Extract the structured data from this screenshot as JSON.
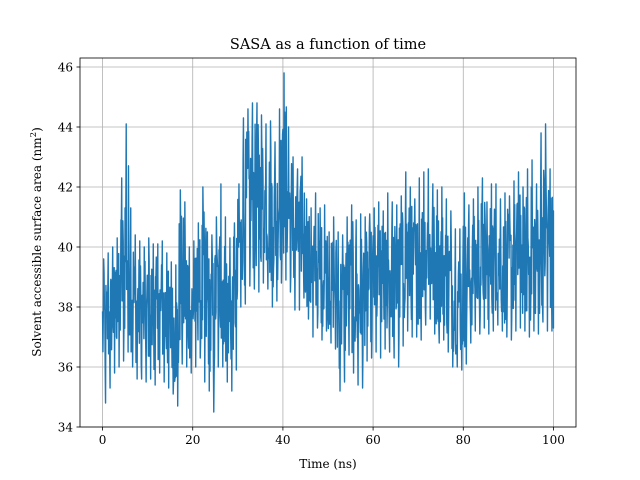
{
  "chart_data": {
    "type": "line",
    "title": "SASA as a function of time",
    "xlabel": "Time (ns)",
    "ylabel_main": "Solvent accessible surface area (nm",
    "ylabel_sup": "2",
    "ylabel_close": ")",
    "xlim": [
      -5,
      105
    ],
    "ylim": [
      34,
      46.3
    ],
    "xticks": [
      0,
      20,
      40,
      60,
      80,
      100
    ],
    "yticks": [
      34,
      36,
      38,
      40,
      42,
      44,
      46
    ],
    "grid": true,
    "line_color": "#1f77b4",
    "series": [
      {
        "x": [
          0,
          1,
          2,
          3,
          4,
          5,
          6,
          7,
          8,
          9,
          10,
          11,
          12,
          13,
          14,
          15,
          16,
          17,
          18,
          19,
          20,
          21,
          22,
          23,
          24,
          25,
          26,
          27,
          28,
          29,
          30,
          31,
          32,
          33,
          34,
          35,
          36,
          37,
          38,
          39,
          40,
          41,
          42,
          43,
          44,
          45,
          46,
          47,
          48,
          49,
          50,
          51,
          52,
          53,
          54,
          55,
          56,
          57,
          58,
          59,
          60,
          61,
          62,
          63,
          64,
          65,
          66,
          67,
          68,
          69,
          70,
          71,
          72,
          73,
          74,
          75,
          76,
          77,
          78,
          79,
          80,
          81,
          82,
          83,
          84,
          85,
          86,
          87,
          88,
          89,
          90,
          91,
          92,
          93,
          94,
          95,
          96,
          97,
          98,
          99,
          100
        ],
        "mean": [
          37.5,
          37.4,
          37.8,
          38.0,
          38.3,
          39.5,
          38.6,
          38.0,
          37.9,
          37.6,
          37.8,
          37.7,
          38.0,
          37.8,
          37.5,
          37.2,
          37.0,
          38.0,
          37.8,
          37.6,
          38.2,
          38.6,
          38.3,
          37.8,
          38.0,
          38.6,
          39.0,
          38.2,
          37.8,
          38.5,
          40.0,
          41.0,
          41.3,
          41.2,
          41.5,
          41.8,
          42.0,
          41.2,
          41.0,
          41.5,
          41.8,
          41.0,
          40.5,
          40.3,
          40.5,
          39.8,
          39.2,
          39.5,
          39.0,
          39.1,
          38.8,
          39.0,
          38.6,
          38.3,
          38.8,
          38.9,
          38.4,
          38.2,
          38.6,
          38.7,
          38.9,
          38.5,
          39.0,
          39.2,
          38.8,
          38.7,
          39.3,
          39.8,
          39.6,
          39.2,
          39.5,
          39.9,
          40.0,
          39.6,
          39.3,
          39.1,
          38.8,
          38.5,
          38.3,
          37.9,
          38.2,
          38.8,
          39.0,
          39.2,
          39.3,
          39.0,
          39.4,
          39.5,
          39.3,
          39.0,
          39.2,
          39.3,
          39.5,
          39.3,
          39.2,
          39.0,
          39.3,
          39.5,
          39.8,
          39.8,
          38.8
        ],
        "max": [
          39.6,
          39.8,
          40.0,
          40.3,
          42.3,
          44.1,
          41.3,
          40.4,
          40.2,
          40.0,
          40.3,
          40.1,
          40.1,
          40.2,
          39.8,
          39.5,
          39.4,
          41.9,
          41.5,
          40.0,
          40.2,
          40.8,
          42.0,
          40.5,
          40.4,
          41.0,
          42.1,
          41.0,
          40.3,
          40.8,
          42.1,
          44.3,
          44.6,
          44.8,
          44.8,
          44.4,
          44.1,
          44.2,
          43.5,
          44.6,
          45.8,
          44.0,
          43.0,
          42.6,
          43.0,
          41.6,
          41.3,
          41.8,
          41.3,
          41.4,
          40.5,
          41.0,
          40.5,
          40.4,
          41.0,
          41.4,
          40.9,
          41.1,
          41.0,
          41.1,
          41.3,
          41.5,
          41.2,
          41.8,
          41.5,
          41.4,
          41.7,
          42.5,
          42.0,
          41.6,
          42.3,
          42.5,
          42.6,
          42.1,
          41.9,
          42.0,
          41.6,
          41.2,
          40.6,
          40.6,
          41.8,
          41.4,
          41.6,
          42.0,
          42.3,
          41.5,
          42.1,
          42.1,
          41.6,
          41.8,
          41.7,
          42.2,
          42.5,
          42.0,
          42.6,
          42.9,
          42.1,
          43.8,
          44.1,
          42.6,
          41.2
        ],
        "min": [
          34.8,
          35.3,
          35.8,
          36.0,
          36.2,
          36.5,
          36.0,
          35.6,
          35.6,
          35.5,
          35.6,
          35.4,
          35.8,
          35.5,
          35.3,
          35.1,
          34.7,
          36.1,
          36.0,
          35.8,
          36.0,
          36.3,
          35.5,
          35.2,
          34.5,
          36.0,
          36.0,
          35.5,
          35.2,
          35.9,
          38.0,
          38.1,
          38.7,
          38.6,
          38.5,
          38.8,
          38.6,
          38.0,
          38.2,
          38.8,
          38.9,
          38.5,
          37.9,
          37.9,
          38.3,
          37.6,
          37.0,
          37.3,
          36.9,
          37.2,
          36.8,
          36.6,
          35.2,
          35.5,
          36.4,
          35.8,
          35.4,
          35.3,
          36.2,
          36.3,
          36.5,
          36.3,
          36.6,
          36.5,
          36.3,
          36.0,
          36.7,
          37.2,
          37.0,
          37.0,
          36.9,
          37.4,
          37.6,
          37.1,
          36.8,
          36.9,
          36.5,
          36.0,
          36.0,
          35.9,
          36.1,
          36.8,
          37.2,
          37.1,
          37.3,
          37.1,
          37.2,
          37.4,
          37.2,
          37.0,
          36.9,
          37.2,
          37.3,
          37.2,
          37.0,
          37.2,
          37.1,
          37.5,
          37.2,
          37.2,
          37.3
        ]
      }
    ]
  }
}
